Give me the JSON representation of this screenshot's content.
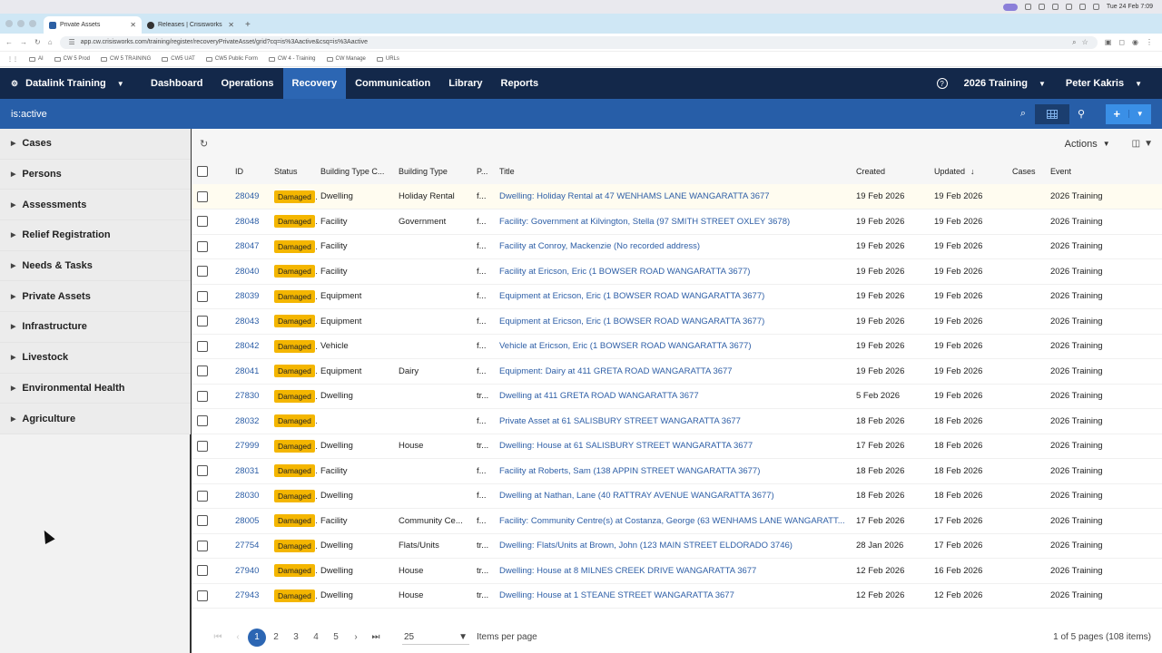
{
  "menubar": {
    "time": "Tue 24 Feb 7:09"
  },
  "browser": {
    "tabs": [
      {
        "title": "Private Assets"
      },
      {
        "title": "Releases | Crisisworks Manu..."
      }
    ],
    "url": "app.cw.crisisworks.com/training/register/recoveryPrivateAsset/grid?cq=is%3Aactive&csq=is%3Aactive",
    "bookmarks": [
      "AI",
      "CW 5 Prod",
      "CW 5 TRAINING",
      "CW5 UAT",
      "CW5 Public Form",
      "CW 4 - Training",
      "CW Manage",
      "URLs"
    ]
  },
  "nav": {
    "brand": "Datalink Training",
    "items": [
      "Dashboard",
      "Operations",
      "Recovery",
      "Communication",
      "Library",
      "Reports"
    ],
    "event": "2026 Training",
    "user": "Peter Kakris"
  },
  "filter": {
    "query": "is:active"
  },
  "sidebar": {
    "items": [
      "Cases",
      "Persons",
      "Assessments",
      "Relief Registration",
      "Needs & Tasks",
      "Private Assets",
      "Infrastructure",
      "Livestock",
      "Environmental Health",
      "Agriculture"
    ]
  },
  "toolbar": {
    "actions": "Actions"
  },
  "table": {
    "headers": [
      "Status",
      "Building Type C...",
      "Building Type",
      "P...",
      "Title",
      "Created",
      "Updated",
      "Cases",
      "Event"
    ],
    "id_header": "ID",
    "rows": [
      {
        "id": "28049",
        "status": "Damaged",
        "btc": "Dwelling",
        "bt": "Holiday Rental",
        "p": "f...",
        "title": "Dwelling: Holiday Rental at 47 WENHAMS LANE WANGARATTA 3677",
        "created": "19 Feb 2026",
        "updated": "19 Feb 2026",
        "cases": "",
        "event": "2026 Training"
      },
      {
        "id": "28048",
        "status": "Damaged",
        "btc": "Facility",
        "bt": "Government",
        "p": "f...",
        "title": "Facility: Government at Kilvington, Stella (97 SMITH STREET OXLEY 3678)",
        "created": "19 Feb 2026",
        "updated": "19 Feb 2026",
        "cases": "",
        "event": "2026 Training"
      },
      {
        "id": "28047",
        "status": "Damaged",
        "btc": "Facility",
        "bt": "",
        "p": "f...",
        "title": "Facility at Conroy, Mackenzie (No recorded address)",
        "created": "19 Feb 2026",
        "updated": "19 Feb 2026",
        "cases": "",
        "event": "2026 Training"
      },
      {
        "id": "28040",
        "status": "Damaged",
        "btc": "Facility",
        "bt": "",
        "p": "f...",
        "title": "Facility at Ericson, Eric (1 BOWSER ROAD WANGARATTA 3677)",
        "created": "19 Feb 2026",
        "updated": "19 Feb 2026",
        "cases": "",
        "event": "2026 Training"
      },
      {
        "id": "28039",
        "status": "Damaged",
        "btc": "Equipment",
        "bt": "",
        "p": "f...",
        "title": "Equipment at Ericson, Eric (1 BOWSER ROAD WANGARATTA 3677)",
        "created": "19 Feb 2026",
        "updated": "19 Feb 2026",
        "cases": "",
        "event": "2026 Training"
      },
      {
        "id": "28043",
        "status": "Damaged",
        "btc": "Equipment",
        "bt": "",
        "p": "f...",
        "title": "Equipment at Ericson, Eric (1 BOWSER ROAD WANGARATTA 3677)",
        "created": "19 Feb 2026",
        "updated": "19 Feb 2026",
        "cases": "",
        "event": "2026 Training"
      },
      {
        "id": "28042",
        "status": "Damaged",
        "btc": "Vehicle",
        "bt": "",
        "p": "f...",
        "title": "Vehicle at Ericson, Eric (1 BOWSER ROAD WANGARATTA 3677)",
        "created": "19 Feb 2026",
        "updated": "19 Feb 2026",
        "cases": "",
        "event": "2026 Training"
      },
      {
        "id": "28041",
        "status": "Damaged",
        "btc": "Equipment",
        "bt": "Dairy",
        "p": "f...",
        "title": "Equipment: Dairy at 411 GRETA ROAD WANGARATTA 3677",
        "created": "19 Feb 2026",
        "updated": "19 Feb 2026",
        "cases": "",
        "event": "2026 Training"
      },
      {
        "id": "27830",
        "status": "Damaged",
        "btc": "Dwelling",
        "bt": "",
        "p": "tr...",
        "title": "Dwelling at 411 GRETA ROAD WANGARATTA 3677",
        "created": "5 Feb 2026",
        "updated": "19 Feb 2026",
        "cases": "",
        "event": "2026 Training"
      },
      {
        "id": "28032",
        "status": "Damaged",
        "btc": "",
        "bt": "",
        "p": "f...",
        "title": "Private Asset at 61 SALISBURY STREET WANGARATTA 3677",
        "created": "18 Feb 2026",
        "updated": "18 Feb 2026",
        "cases": "",
        "event": "2026 Training"
      },
      {
        "id": "27999",
        "status": "Damaged",
        "btc": "Dwelling",
        "bt": "House",
        "p": "tr...",
        "title": "Dwelling: House at 61 SALISBURY STREET WANGARATTA 3677",
        "created": "17 Feb 2026",
        "updated": "18 Feb 2026",
        "cases": "",
        "event": "2026 Training"
      },
      {
        "id": "28031",
        "status": "Damaged",
        "btc": "Facility",
        "bt": "",
        "p": "f...",
        "title": "Facility at Roberts, Sam (138 APPIN STREET WANGARATTA 3677)",
        "created": "18 Feb 2026",
        "updated": "18 Feb 2026",
        "cases": "",
        "event": "2026 Training"
      },
      {
        "id": "28030",
        "status": "Damaged",
        "btc": "Dwelling",
        "bt": "",
        "p": "f...",
        "title": "Dwelling at Nathan, Lane (40 RATTRAY AVENUE WANGARATTA 3677)",
        "created": "18 Feb 2026",
        "updated": "18 Feb 2026",
        "cases": "",
        "event": "2026 Training"
      },
      {
        "id": "28005",
        "status": "Damaged",
        "btc": "Facility",
        "bt": "Community Ce...",
        "p": "f...",
        "title": "Facility: Community Centre(s) at Costanza, George (63 WENHAMS LANE WANGARATT...",
        "created": "17 Feb 2026",
        "updated": "17 Feb 2026",
        "cases": "",
        "event": "2026 Training"
      },
      {
        "id": "27754",
        "status": "Damaged",
        "btc": "Dwelling",
        "bt": "Flats/Units",
        "p": "tr...",
        "title": "Dwelling: Flats/Units at Brown, John (123 MAIN STREET ELDORADO 3746)",
        "created": "28 Jan 2026",
        "updated": "17 Feb 2026",
        "cases": "",
        "event": "2026 Training"
      },
      {
        "id": "27940",
        "status": "Damaged",
        "btc": "Dwelling",
        "bt": "House",
        "p": "tr...",
        "title": "Dwelling: House at 8 MILNES CREEK DRIVE WANGARATTA 3677",
        "created": "12 Feb 2026",
        "updated": "16 Feb 2026",
        "cases": "",
        "event": "2026 Training"
      },
      {
        "id": "27943",
        "status": "Damaged",
        "btc": "Dwelling",
        "bt": "House",
        "p": "tr...",
        "title": "Dwelling: House at 1 STEANE STREET WANGARATTA 3677",
        "created": "12 Feb 2026",
        "updated": "12 Feb 2026",
        "cases": "",
        "event": "2026 Training"
      }
    ]
  },
  "pager": {
    "pages": [
      "1",
      "2",
      "3",
      "4",
      "5"
    ],
    "current": "1",
    "per_page": "25",
    "per_page_label": "Items per page",
    "info": "1 of 5 pages (108 items)"
  },
  "colors": {
    "nav_bg": "#13284a",
    "nav_active": "#2c66b3",
    "filter_bg": "#275ea8",
    "badge": "#f4b600",
    "link": "#2d5ea6"
  }
}
